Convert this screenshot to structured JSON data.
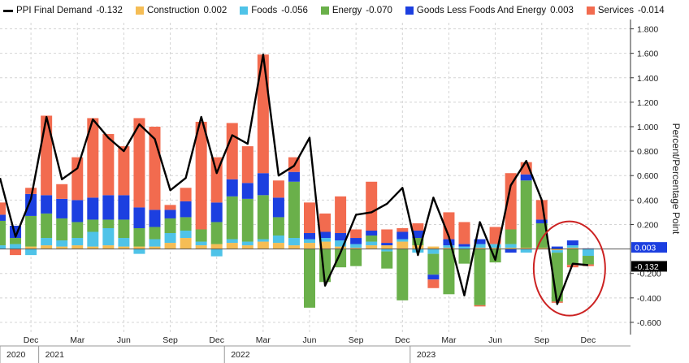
{
  "chart_data": {
    "type": "bar",
    "ylabel": "Percent/Percentage Point",
    "ylim": [
      -0.7,
      1.85
    ],
    "yticks": [
      {
        "value": 1.8,
        "label": "1.800"
      },
      {
        "value": 1.6,
        "label": "1.600"
      },
      {
        "value": 1.4,
        "label": "1.400"
      },
      {
        "value": 1.2,
        "label": "1.200"
      },
      {
        "value": 1.0,
        "label": "1.000"
      },
      {
        "value": 0.8,
        "label": "0.800"
      },
      {
        "value": 0.6,
        "label": "0.600"
      },
      {
        "value": 0.4,
        "label": "0.400"
      },
      {
        "value": 0.2,
        "label": "0.200"
      },
      {
        "value": -0.2,
        "label": "-0.200"
      },
      {
        "value": -0.4,
        "label": "-0.400"
      },
      {
        "value": -0.6,
        "label": "-0.600"
      }
    ],
    "months": [
      "2020-10",
      "2020-11",
      "2020-12",
      "2021-01",
      "2021-02",
      "2021-03",
      "2021-04",
      "2021-05",
      "2021-06",
      "2021-07",
      "2021-08",
      "2021-09",
      "2021-10",
      "2021-11",
      "2021-12",
      "2022-01",
      "2022-02",
      "2022-03",
      "2022-04",
      "2022-05",
      "2022-06",
      "2022-07",
      "2022-08",
      "2022-09",
      "2022-10",
      "2022-11",
      "2022-12",
      "2023-01",
      "2023-02",
      "2023-03",
      "2023-04",
      "2023-05",
      "2023-06",
      "2023-07",
      "2023-08",
      "2023-09",
      "2023-10",
      "2023-11",
      "2023-12"
    ],
    "month_ticks": [
      {
        "index": 2,
        "label": "Dec"
      },
      {
        "index": 5,
        "label": "Mar"
      },
      {
        "index": 8,
        "label": "Jun"
      },
      {
        "index": 11,
        "label": "Sep"
      },
      {
        "index": 14,
        "label": "Dec"
      },
      {
        "index": 17,
        "label": "Mar"
      },
      {
        "index": 20,
        "label": "Jun"
      },
      {
        "index": 23,
        "label": "Sep"
      },
      {
        "index": 26,
        "label": "Dec"
      },
      {
        "index": 29,
        "label": "Mar"
      },
      {
        "index": 32,
        "label": "Jun"
      },
      {
        "index": 35,
        "label": "Sep"
      },
      {
        "index": 38,
        "label": "Dec"
      }
    ],
    "year_ticks": [
      {
        "index": 0,
        "label": "2020"
      },
      {
        "index": 3,
        "label": "2021"
      },
      {
        "index": 15,
        "label": "2022"
      },
      {
        "index": 27,
        "label": "2023"
      }
    ],
    "series": [
      {
        "key": "construction",
        "name": "Construction",
        "color": "#f5bd55",
        "values": [
          0.0,
          0.0,
          0.02,
          0.03,
          0.02,
          0.03,
          0.02,
          0.03,
          0.02,
          0.02,
          0.02,
          0.05,
          0.09,
          0.03,
          0.04,
          0.05,
          0.03,
          0.06,
          0.05,
          0.03,
          0.05,
          0.06,
          0.02,
          0.01,
          0.03,
          0.03,
          0.06,
          0.03,
          0.02,
          0.01,
          0.0,
          0.01,
          0.01,
          0.01,
          0.01,
          0.01,
          -0.01,
          0.01,
          0.002
        ]
      },
      {
        "key": "foods",
        "name": "Foods",
        "color": "#4fc3e8",
        "values": [
          0.03,
          0.04,
          -0.05,
          0.06,
          0.05,
          0.06,
          0.12,
          0.14,
          0.07,
          -0.04,
          0.06,
          0.08,
          0.06,
          0.03,
          -0.06,
          0.03,
          0.03,
          0.02,
          0.06,
          0.06,
          0.03,
          0.03,
          0.05,
          0.03,
          0.03,
          -0.02,
          0.02,
          -0.03,
          -0.04,
          0.02,
          0.02,
          0.03,
          0.03,
          0.03,
          -0.03,
          0.0,
          -0.02,
          0.02,
          -0.056
        ]
      },
      {
        "key": "energy",
        "name": "Energy",
        "color": "#6ab04a",
        "values": [
          0.2,
          0.05,
          0.25,
          0.2,
          0.18,
          0.13,
          0.1,
          0.07,
          0.15,
          0.15,
          0.1,
          0.12,
          0.11,
          0.1,
          0.18,
          0.35,
          0.35,
          0.36,
          0.15,
          0.46,
          -0.48,
          -0.27,
          -0.15,
          -0.14,
          0.05,
          -0.14,
          -0.42,
          0.06,
          -0.17,
          -0.37,
          -0.12,
          -0.46,
          -0.11,
          0.12,
          0.55,
          0.2,
          -0.4,
          -0.13,
          -0.07
        ]
      },
      {
        "key": "goods_ex",
        "name": "Goods Less Foods And Energy",
        "color": "#1c3fe0",
        "values": [
          0.05,
          0.1,
          0.18,
          0.15,
          0.16,
          0.18,
          0.18,
          0.2,
          0.2,
          0.17,
          0.14,
          0.07,
          0.13,
          0.0,
          0.16,
          0.14,
          0.13,
          0.18,
          0.16,
          0.08,
          0.05,
          0.05,
          0.06,
          0.05,
          0.04,
          0.02,
          0.06,
          0.06,
          -0.04,
          0.05,
          0.02,
          0.04,
          0.0,
          -0.03,
          0.05,
          0.03,
          0.02,
          0.04,
          0.003
        ]
      },
      {
        "key": "services",
        "name": "Services",
        "color": "#f26b4f",
        "values": [
          0.1,
          -0.05,
          0.05,
          0.65,
          0.12,
          0.35,
          0.65,
          0.5,
          0.4,
          0.73,
          0.68,
          0.04,
          0.11,
          0.88,
          0.37,
          0.46,
          0.3,
          0.97,
          0.14,
          0.12,
          0.25,
          0.15,
          0.3,
          0.07,
          0.4,
          0.11,
          0.03,
          0.06,
          -0.07,
          0.22,
          0.18,
          -0.01,
          0.14,
          0.46,
          0.1,
          0.16,
          -0.01,
          -0.02,
          -0.014
        ]
      }
    ],
    "line": {
      "key": "final_demand",
      "name": "PPI Final Demand",
      "color": "#000000",
      "values": [
        0.58,
        0.1,
        0.41,
        1.08,
        0.57,
        0.66,
        1.06,
        0.91,
        0.8,
        1.02,
        0.9,
        0.48,
        0.58,
        1.08,
        0.62,
        0.93,
        0.86,
        1.59,
        0.6,
        0.68,
        0.91,
        -0.3,
        -0.03,
        0.28,
        0.3,
        0.37,
        0.5,
        -0.05,
        0.42,
        0.1,
        -0.38,
        0.22,
        -0.09,
        0.52,
        0.72,
        0.4,
        -0.45,
        -0.12,
        -0.132
      ]
    },
    "latest_labels": [
      {
        "text": "0.003",
        "color": "#1c3fe0",
        "value": 0.003
      },
      {
        "text": "-0.132",
        "color": "#000000",
        "value": -0.132
      }
    ],
    "annotation": {
      "shape": "ellipse",
      "color": "#cc2222"
    }
  },
  "legend": [
    {
      "name": "PPI Final Demand",
      "value": "-0.132",
      "color": "#000000",
      "kind": "line"
    },
    {
      "name": "Construction",
      "value": "0.002",
      "color": "#f5bd55",
      "kind": "box"
    },
    {
      "name": "Foods",
      "value": "-0.056",
      "color": "#4fc3e8",
      "kind": "box"
    },
    {
      "name": "Energy",
      "value": "-0.070",
      "color": "#6ab04a",
      "kind": "box"
    },
    {
      "name": "Goods Less Foods And Energy",
      "value": "0.003",
      "color": "#1c3fe0",
      "kind": "box"
    },
    {
      "name": "Services",
      "value": "-0.014",
      "color": "#f26b4f",
      "kind": "box"
    }
  ]
}
